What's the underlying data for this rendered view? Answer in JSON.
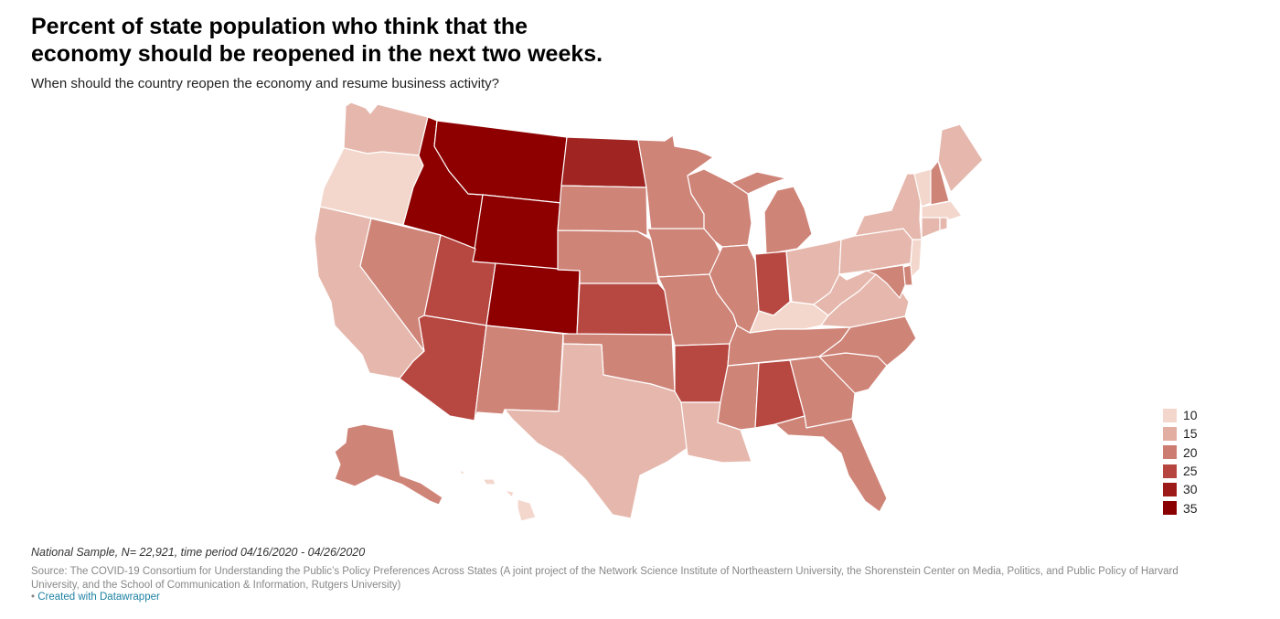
{
  "title": "Percent of state population who think that the economy should be reopened in the next two weeks.",
  "subtitle": "When should the country reopen the economy and resume business activity?",
  "colors": {
    "10": "#f3d7cc",
    "15": "#e6b8ad",
    "20": "#cf8478",
    "25": "#b74841",
    "30": "#a02522",
    "35": "#8e0000"
  },
  "legend": [
    {
      "label": "10",
      "color": "#f3d7cc"
    },
    {
      "label": "15",
      "color": "#e2aea2"
    },
    {
      "label": "20",
      "color": "#cd7c71"
    },
    {
      "label": "25",
      "color": "#b6453f"
    },
    {
      "label": "30",
      "color": "#9c1b18"
    },
    {
      "label": "35",
      "color": "#8a0000"
    }
  ],
  "states": [
    {
      "code": "WA",
      "level": "15"
    },
    {
      "code": "OR",
      "level": "10"
    },
    {
      "code": "CA",
      "level": "15"
    },
    {
      "code": "NV",
      "level": "20"
    },
    {
      "code": "ID",
      "level": "35"
    },
    {
      "code": "MT",
      "level": "35"
    },
    {
      "code": "WY",
      "level": "35"
    },
    {
      "code": "UT",
      "level": "25"
    },
    {
      "code": "AZ",
      "level": "25"
    },
    {
      "code": "CO",
      "level": "35"
    },
    {
      "code": "NM",
      "level": "20"
    },
    {
      "code": "ND",
      "level": "30"
    },
    {
      "code": "SD",
      "level": "20"
    },
    {
      "code": "NE",
      "level": "20"
    },
    {
      "code": "KS",
      "level": "25"
    },
    {
      "code": "OK",
      "level": "20"
    },
    {
      "code": "TX",
      "level": "15"
    },
    {
      "code": "MN",
      "level": "20"
    },
    {
      "code": "IA",
      "level": "20"
    },
    {
      "code": "MO",
      "level": "20"
    },
    {
      "code": "AR",
      "level": "25"
    },
    {
      "code": "LA",
      "level": "15"
    },
    {
      "code": "WI",
      "level": "20"
    },
    {
      "code": "IL",
      "level": "20"
    },
    {
      "code": "MI",
      "level": "20"
    },
    {
      "code": "IN",
      "level": "25"
    },
    {
      "code": "OH",
      "level": "15"
    },
    {
      "code": "KY",
      "level": "10"
    },
    {
      "code": "TN",
      "level": "20"
    },
    {
      "code": "MS",
      "level": "20"
    },
    {
      "code": "AL",
      "level": "25"
    },
    {
      "code": "GA",
      "level": "20"
    },
    {
      "code": "FL",
      "level": "20"
    },
    {
      "code": "SC",
      "level": "20"
    },
    {
      "code": "NC",
      "level": "20"
    },
    {
      "code": "VA",
      "level": "15"
    },
    {
      "code": "WV",
      "level": "15"
    },
    {
      "code": "PA",
      "level": "15"
    },
    {
      "code": "NY",
      "level": "15"
    },
    {
      "code": "VT",
      "level": "10"
    },
    {
      "code": "NH",
      "level": "20"
    },
    {
      "code": "ME",
      "level": "15"
    },
    {
      "code": "MA",
      "level": "10"
    },
    {
      "code": "CT",
      "level": "15"
    },
    {
      "code": "RI",
      "level": "15"
    },
    {
      "code": "NJ",
      "level": "10"
    },
    {
      "code": "DE",
      "level": "20"
    },
    {
      "code": "MD",
      "level": "20"
    },
    {
      "code": "AK",
      "level": "20"
    },
    {
      "code": "HI",
      "level": "10"
    }
  ],
  "note": "National Sample, N= 22,921, time period 04/16/2020 - 04/26/2020",
  "source": "Source: The COVID-19 Consortium for Understanding the Public’s Policy Preferences Across States (A joint project of the Network Science Institute of Northeastern University, the Shorenstein Center on Media, Politics, and Public Policy of Harvard University, and the School of Communication & Information, Rutgers University)",
  "credit_bullet": "•",
  "credit": "Created with Datawrapper"
}
